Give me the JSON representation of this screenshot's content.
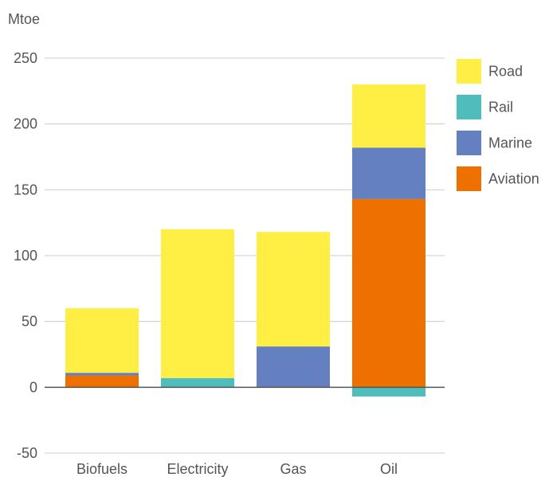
{
  "chart_data": {
    "type": "bar",
    "stacked": true,
    "title": "",
    "xlabel": "",
    "ylabel": "Mtoe",
    "ylim": [
      -50,
      250
    ],
    "yticks": [
      -50,
      0,
      50,
      100,
      150,
      200,
      250
    ],
    "grid": true,
    "legend_position": "right",
    "categories": [
      "Biofuels",
      "Electricity",
      "Gas",
      "Oil"
    ],
    "series": [
      {
        "name": "Road",
        "color": "#FFEE44",
        "values": [
          49,
          113,
          87,
          48
        ]
      },
      {
        "name": "Rail",
        "color": "#50BDBD",
        "values": [
          0,
          7,
          0,
          -7
        ]
      },
      {
        "name": "Marine",
        "color": "#6580C0",
        "values": [
          2,
          0,
          31,
          39
        ]
      },
      {
        "name": "Aviation",
        "color": "#EE7100",
        "values": [
          9,
          0,
          0,
          143
        ]
      }
    ],
    "stack_order": [
      "Aviation",
      "Marine",
      "Rail",
      "Road"
    ]
  }
}
